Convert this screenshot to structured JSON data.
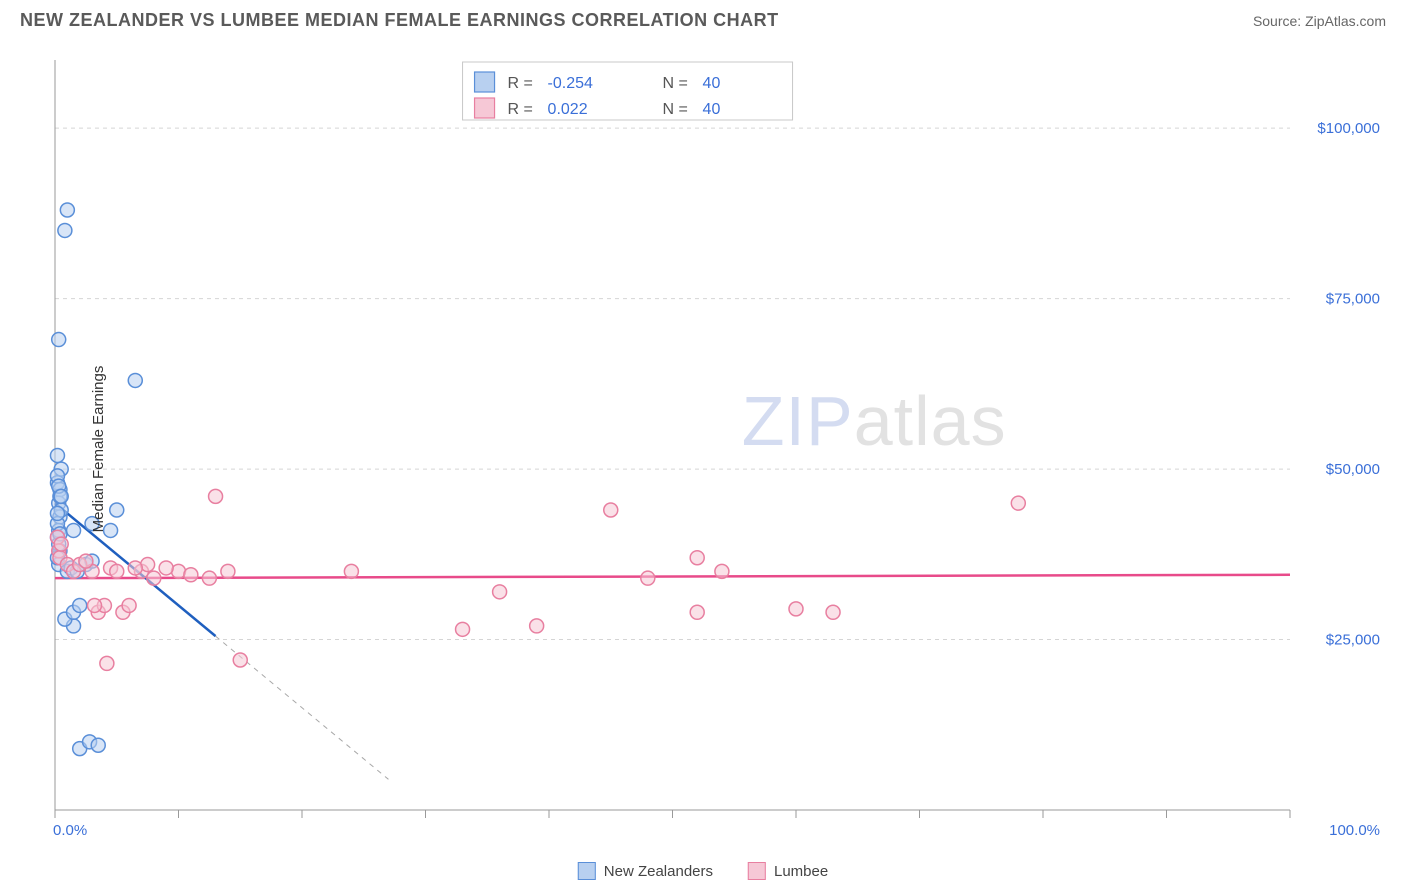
{
  "header": {
    "title": "NEW ZEALANDER VS LUMBEE MEDIAN FEMALE EARNINGS CORRELATION CHART",
    "source_label": "Source: ZipAtlas.com"
  },
  "ylabel": "Median Female Earnings",
  "watermark": {
    "part1": "ZIP",
    "part2": "atlas"
  },
  "chart": {
    "type": "scatter",
    "background_color": "#ffffff",
    "grid_color": "#d5d5d5",
    "axis_color": "#9a9a9a",
    "xlim": [
      0,
      100
    ],
    "ylim": [
      0,
      110000
    ],
    "xtick_min_label": "0.0%",
    "xtick_max_label": "100.0%",
    "xtick_positions": [
      0,
      10,
      20,
      30,
      40,
      50,
      60,
      70,
      80,
      90,
      100
    ],
    "ytick_positions": [
      25000,
      50000,
      75000,
      100000
    ],
    "ytick_labels": [
      "$25,000",
      "$50,000",
      "$75,000",
      "$100,000"
    ],
    "tick_label_color": "#3a6fd8",
    "marker_radius": 7,
    "marker_stroke_width": 1.5,
    "series": [
      {
        "name": "New Zealanders",
        "fill": "#b8d0f0",
        "stroke": "#5a8fd8",
        "fill_opacity": 0.55,
        "points": [
          [
            0.3,
            69000
          ],
          [
            0.2,
            48000
          ],
          [
            0.4,
            47000
          ],
          [
            0.3,
            45000
          ],
          [
            0.5,
            50000
          ],
          [
            0.2,
            52000
          ],
          [
            0.2,
            49000
          ],
          [
            0.4,
            43000
          ],
          [
            0.2,
            40000
          ],
          [
            0.4,
            38000
          ],
          [
            0.3,
            36000
          ],
          [
            0.5,
            44000
          ],
          [
            1.0,
            88000
          ],
          [
            0.8,
            85000
          ],
          [
            6.5,
            63000
          ],
          [
            3.0,
            42000
          ],
          [
            5.0,
            44000
          ],
          [
            1.5,
            27000
          ],
          [
            0.8,
            28000
          ],
          [
            1.5,
            29000
          ],
          [
            2.0,
            30000
          ],
          [
            2.0,
            9000
          ],
          [
            2.8,
            10000
          ],
          [
            3.5,
            9500
          ],
          [
            1.5,
            41000
          ],
          [
            4.5,
            41000
          ],
          [
            2.5,
            36000
          ],
          [
            3.0,
            36500
          ],
          [
            0.3,
            41000
          ],
          [
            0.2,
            42000
          ],
          [
            0.4,
            46000
          ],
          [
            0.3,
            47500
          ],
          [
            1.0,
            35000
          ],
          [
            1.3,
            35500
          ],
          [
            1.8,
            35000
          ],
          [
            0.2,
            37000
          ],
          [
            0.3,
            39000
          ],
          [
            0.4,
            40500
          ],
          [
            0.2,
            43500
          ],
          [
            0.5,
            46000
          ]
        ],
        "trend": {
          "slope": -1500,
          "intercept": 45000,
          "color": "#1f5fbf",
          "dash_color": "#a8a8a8"
        }
      },
      {
        "name": "Lumbee",
        "fill": "#f6c8d6",
        "stroke": "#e87fa0",
        "fill_opacity": 0.55,
        "points": [
          [
            0.2,
            40000
          ],
          [
            0.3,
            38000
          ],
          [
            0.4,
            37000
          ],
          [
            0.5,
            39000
          ],
          [
            1.0,
            36000
          ],
          [
            1.5,
            35000
          ],
          [
            2.0,
            36000
          ],
          [
            3.0,
            35000
          ],
          [
            3.5,
            29000
          ],
          [
            4.0,
            30000
          ],
          [
            4.5,
            35500
          ],
          [
            5.0,
            35000
          ],
          [
            5.5,
            29000
          ],
          [
            6.0,
            30000
          ],
          [
            7.0,
            35000
          ],
          [
            7.5,
            36000
          ],
          [
            8.0,
            34000
          ],
          [
            10.0,
            35000
          ],
          [
            11.0,
            34500
          ],
          [
            12.5,
            34000
          ],
          [
            13.0,
            46000
          ],
          [
            14.0,
            35000
          ],
          [
            15.0,
            22000
          ],
          [
            24.0,
            35000
          ],
          [
            33.0,
            26500
          ],
          [
            36.0,
            32000
          ],
          [
            39.0,
            27000
          ],
          [
            45.0,
            44000
          ],
          [
            48.0,
            34000
          ],
          [
            52.0,
            37000
          ],
          [
            52.0,
            29000
          ],
          [
            54.0,
            35000
          ],
          [
            60.0,
            29500
          ],
          [
            63.0,
            29000
          ],
          [
            78.0,
            45000
          ],
          [
            2.5,
            36500
          ],
          [
            3.2,
            30000
          ],
          [
            4.2,
            21500
          ],
          [
            9.0,
            35500
          ],
          [
            6.5,
            35500
          ]
        ],
        "trend": {
          "slope": 5,
          "intercept": 34000,
          "color": "#e84b8a",
          "dash_color": "#e8a8c0"
        }
      }
    ]
  },
  "stat_box": {
    "border_color": "#c8c8c8",
    "rows": [
      {
        "swatch_fill": "#b8d0f0",
        "swatch_stroke": "#5a8fd8",
        "r_label": "R =",
        "r_value": "-0.254",
        "n_label": "N =",
        "n_value": "40"
      },
      {
        "swatch_fill": "#f6c8d6",
        "swatch_stroke": "#e87fa0",
        "r_label": "R =",
        "r_value": " 0.022",
        "n_label": "N =",
        "n_value": "40"
      }
    ]
  },
  "legend_bottom": [
    {
      "label": "New Zealanders",
      "fill": "#b8d0f0",
      "stroke": "#5a8fd8"
    },
    {
      "label": "Lumbee",
      "fill": "#f6c8d6",
      "stroke": "#e87fa0"
    }
  ]
}
